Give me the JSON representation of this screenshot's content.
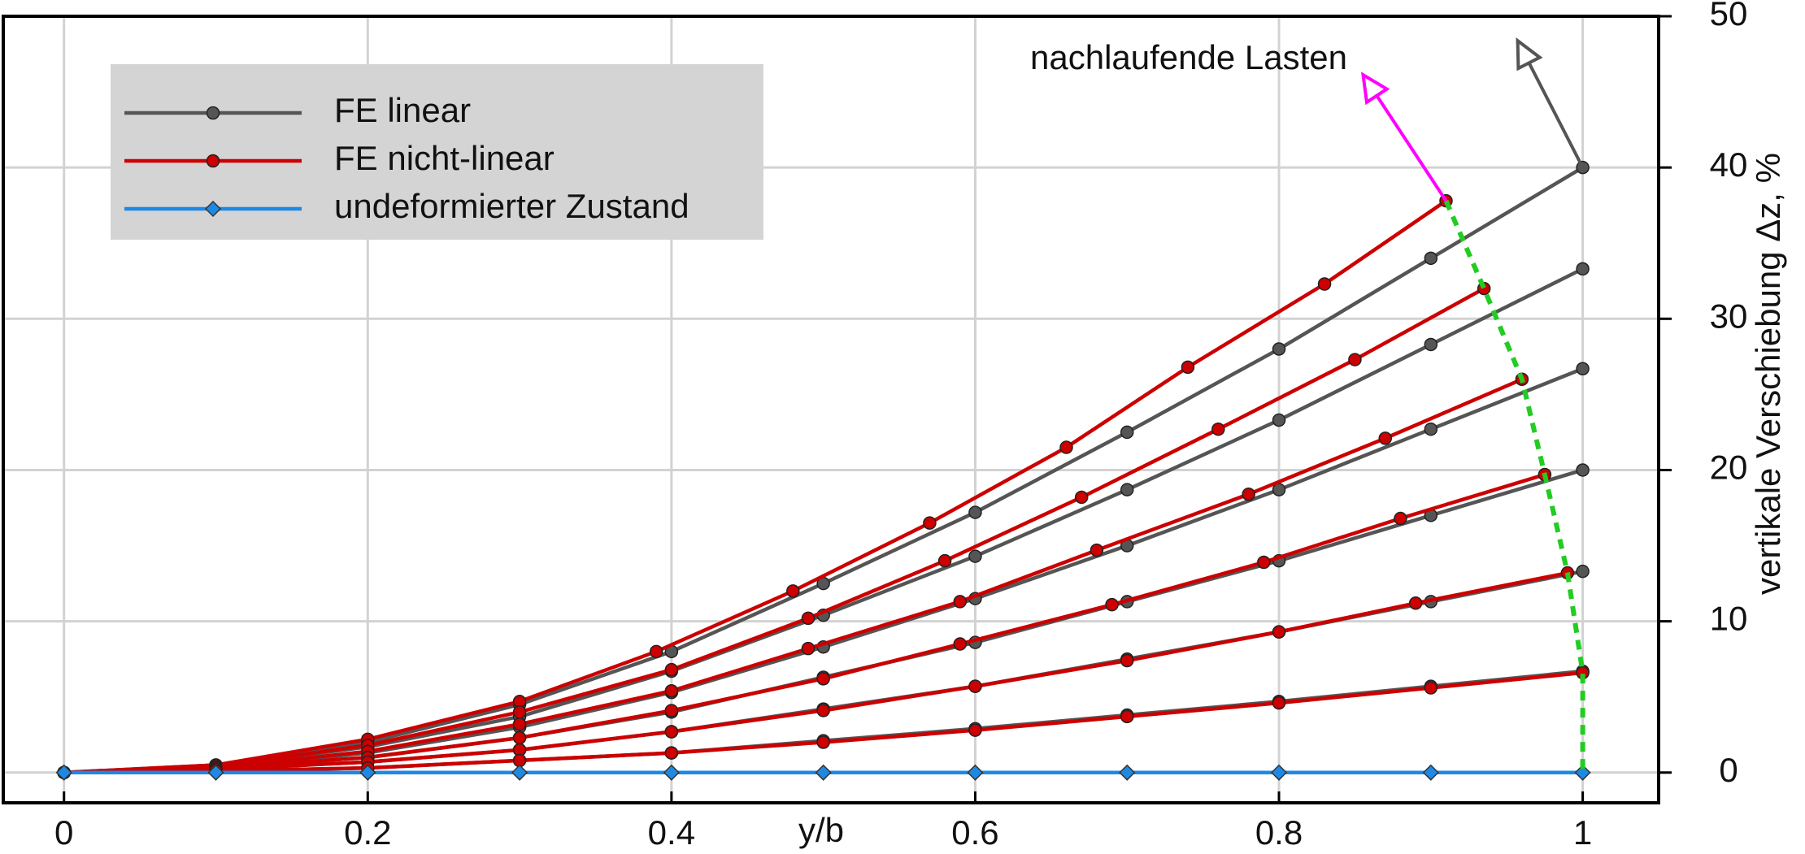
{
  "chart_data": {
    "type": "line",
    "xlabel": "y/b",
    "ylabel": "vertikale Verschiebung  Δz, %",
    "annotation": "nachlaufende Lasten",
    "xlim": [
      -0.04,
      1.05
    ],
    "ylim": [
      -2,
      50
    ],
    "xticks": [
      0,
      0.2,
      0.4,
      0.6,
      0.8,
      1
    ],
    "yticks": [
      0,
      10,
      20,
      30,
      40,
      50
    ],
    "grid": true,
    "legend": "upper left",
    "series": [
      {
        "name": "FE linear",
        "color": "#555555",
        "marker": "circle",
        "lines": [
          {
            "x": [
              0,
              0.1,
              0.2,
              0.3,
              0.4,
              0.5,
              0.6,
              0.7,
              0.8,
              0.9,
              1
            ],
            "values": [
              0,
              0.5,
              2,
              4.5,
              8,
              12.5,
              17.2,
              22.5,
              28,
              34,
              40
            ]
          },
          {
            "x": [
              0,
              0.1,
              0.2,
              0.3,
              0.4,
              0.5,
              0.6,
              0.7,
              0.8,
              0.9,
              1
            ],
            "values": [
              0,
              0.4,
              1.7,
              3.7,
              6.7,
              10.4,
              14.3,
              18.7,
              23.3,
              28.3,
              33.3
            ]
          },
          {
            "x": [
              0,
              0.1,
              0.2,
              0.3,
              0.4,
              0.5,
              0.6,
              0.7,
              0.8,
              0.9,
              1
            ],
            "values": [
              0,
              0.3,
              1.3,
              3,
              5.3,
              8.3,
              11.5,
              15,
              18.7,
              22.7,
              26.7
            ]
          },
          {
            "x": [
              0,
              0.1,
              0.2,
              0.3,
              0.4,
              0.5,
              0.6,
              0.7,
              0.8,
              0.9,
              1
            ],
            "values": [
              0,
              0.3,
              1,
              2.3,
              4,
              6.3,
              8.6,
              11.3,
              14,
              17,
              20
            ]
          },
          {
            "x": [
              0,
              0.1,
              0.2,
              0.3,
              0.4,
              0.5,
              0.6,
              0.7,
              0.8,
              0.9,
              1
            ],
            "values": [
              0,
              0.2,
              0.7,
              1.5,
              2.7,
              4.2,
              5.7,
              7.5,
              9.3,
              11.3,
              13.3
            ]
          },
          {
            "x": [
              0,
              0.1,
              0.2,
              0.3,
              0.4,
              0.5,
              0.6,
              0.7,
              0.8,
              0.9,
              1
            ],
            "values": [
              0,
              0.1,
              0.3,
              0.8,
              1.3,
              2.1,
              2.9,
              3.8,
              4.7,
              5.7,
              6.7
            ]
          }
        ]
      },
      {
        "name": "FE nicht-linear",
        "color": "#cc0000",
        "marker": "circle",
        "lines": [
          {
            "x": [
              0,
              0.1,
              0.2,
              0.3,
              0.39,
              0.48,
              0.57,
              0.66,
              0.74,
              0.83,
              0.91
            ],
            "values": [
              0,
              0.5,
              2.2,
              4.7,
              8,
              12,
              16.5,
              21.5,
              26.8,
              32.3,
              37.8
            ]
          },
          {
            "x": [
              0,
              0.1,
              0.2,
              0.3,
              0.4,
              0.49,
              0.58,
              0.67,
              0.76,
              0.85,
              0.935
            ],
            "values": [
              0,
              0.4,
              1.8,
              4,
              6.8,
              10.2,
              14,
              18.2,
              22.7,
              27.3,
              32
            ]
          },
          {
            "x": [
              0,
              0.1,
              0.2,
              0.3,
              0.4,
              0.49,
              0.59,
              0.68,
              0.78,
              0.87,
              0.96
            ],
            "values": [
              0,
              0.3,
              1.4,
              3.2,
              5.4,
              8.2,
              11.3,
              14.7,
              18.4,
              22.1,
              26
            ]
          },
          {
            "x": [
              0,
              0.1,
              0.2,
              0.3,
              0.4,
              0.5,
              0.59,
              0.69,
              0.79,
              0.88,
              0.975
            ],
            "values": [
              0,
              0.3,
              1,
              2.3,
              4.1,
              6.2,
              8.5,
              11.1,
              13.9,
              16.8,
              19.7
            ]
          },
          {
            "x": [
              0,
              0.1,
              0.2,
              0.3,
              0.4,
              0.5,
              0.6,
              0.7,
              0.8,
              0.89,
              0.99
            ],
            "values": [
              0,
              0.2,
              0.7,
              1.5,
              2.7,
              4.1,
              5.7,
              7.4,
              9.3,
              11.2,
              13.2
            ]
          },
          {
            "x": [
              0,
              0.1,
              0.2,
              0.3,
              0.4,
              0.5,
              0.6,
              0.7,
              0.8,
              0.9,
              1
            ],
            "values": [
              0,
              0.1,
              0.3,
              0.8,
              1.3,
              2,
              2.8,
              3.7,
              4.6,
              5.6,
              6.6
            ]
          }
        ]
      },
      {
        "name": "undeformierter Zustand",
        "color": "#1e88e5",
        "marker": "diamond",
        "lines": [
          {
            "x": [
              0,
              0.1,
              0.2,
              0.3,
              0.4,
              0.5,
              0.6,
              0.7,
              0.8,
              0.9,
              1
            ],
            "values": [
              0,
              0,
              0,
              0,
              0,
              0,
              0,
              0,
              0,
              0,
              0
            ]
          }
        ]
      }
    ]
  }
}
